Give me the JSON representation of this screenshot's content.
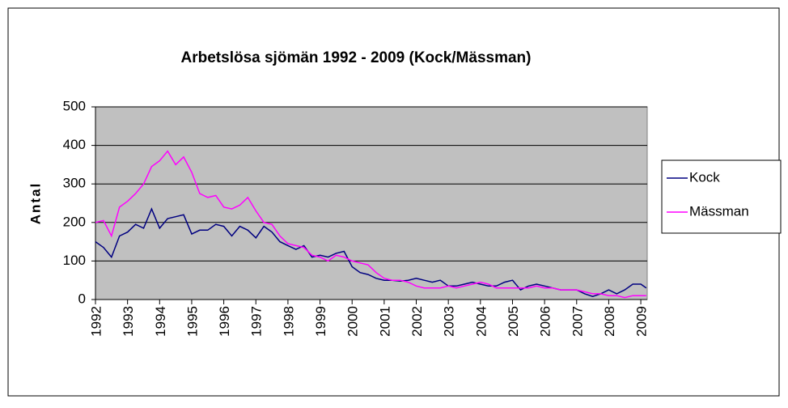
{
  "chart_data": {
    "type": "line",
    "title": "Arbetslösa sjömän 1992 - 2009 (Kock/Mässman)",
    "y_label": "Antal",
    "x": [
      1992,
      1992.25,
      1992.5,
      1992.75,
      1993,
      1993.25,
      1993.5,
      1993.75,
      1994,
      1994.25,
      1994.5,
      1994.75,
      1995,
      1995.25,
      1995.5,
      1995.75,
      1996,
      1996.25,
      1996.5,
      1996.75,
      1997,
      1997.25,
      1997.5,
      1997.75,
      1998,
      1998.25,
      1998.5,
      1998.75,
      1999,
      1999.25,
      1999.5,
      1999.75,
      2000,
      2000.25,
      2000.5,
      2000.75,
      2001,
      2001.25,
      2001.5,
      2001.75,
      2002,
      2002.25,
      2002.5,
      2002.75,
      2003,
      2003.25,
      2003.5,
      2003.75,
      2004,
      2004.25,
      2004.5,
      2004.75,
      2005,
      2005.25,
      2005.5,
      2005.75,
      2006,
      2006.25,
      2006.5,
      2006.75,
      2007,
      2007.25,
      2007.5,
      2007.75,
      2008,
      2008.25,
      2008.5,
      2008.75,
      2009,
      2009.17
    ],
    "series": [
      {
        "name": "Kock",
        "color": "#000080",
        "values": [
          150,
          135,
          110,
          165,
          175,
          195,
          185,
          235,
          185,
          210,
          215,
          220,
          170,
          180,
          180,
          195,
          190,
          165,
          190,
          180,
          160,
          190,
          175,
          150,
          140,
          130,
          140,
          110,
          115,
          110,
          120,
          125,
          85,
          70,
          65,
          55,
          50,
          50,
          48,
          50,
          55,
          50,
          45,
          50,
          35,
          35,
          40,
          45,
          40,
          35,
          35,
          45,
          50,
          25,
          35,
          40,
          35,
          30,
          25,
          25,
          25,
          15,
          8,
          15,
          25,
          15,
          25,
          40,
          40,
          30
        ]
      },
      {
        "name": "Mässman",
        "color": "#ff00ff",
        "values": [
          200,
          205,
          165,
          240,
          255,
          275,
          300,
          345,
          360,
          385,
          350,
          370,
          330,
          275,
          265,
          270,
          240,
          235,
          245,
          265,
          230,
          200,
          195,
          165,
          145,
          140,
          135,
          115,
          110,
          100,
          115,
          110,
          100,
          95,
          90,
          70,
          55,
          50,
          50,
          45,
          35,
          30,
          30,
          30,
          35,
          30,
          35,
          40,
          45,
          40,
          30,
          30,
          30,
          30,
          30,
          35,
          30,
          30,
          25,
          25,
          25,
          20,
          15,
          15,
          10,
          10,
          5,
          10,
          10,
          10
        ]
      }
    ],
    "xlim": [
      1992,
      2009.2
    ],
    "xticks": [
      1992,
      1993,
      1994,
      1995,
      1996,
      1997,
      1998,
      1999,
      2000,
      2001,
      2002,
      2003,
      2004,
      2005,
      2006,
      2007,
      2008,
      2009
    ],
    "ylim": [
      0,
      500
    ],
    "yticks": [
      0,
      100,
      200,
      300,
      400,
      500
    ],
    "grid": true,
    "legend": "right"
  }
}
